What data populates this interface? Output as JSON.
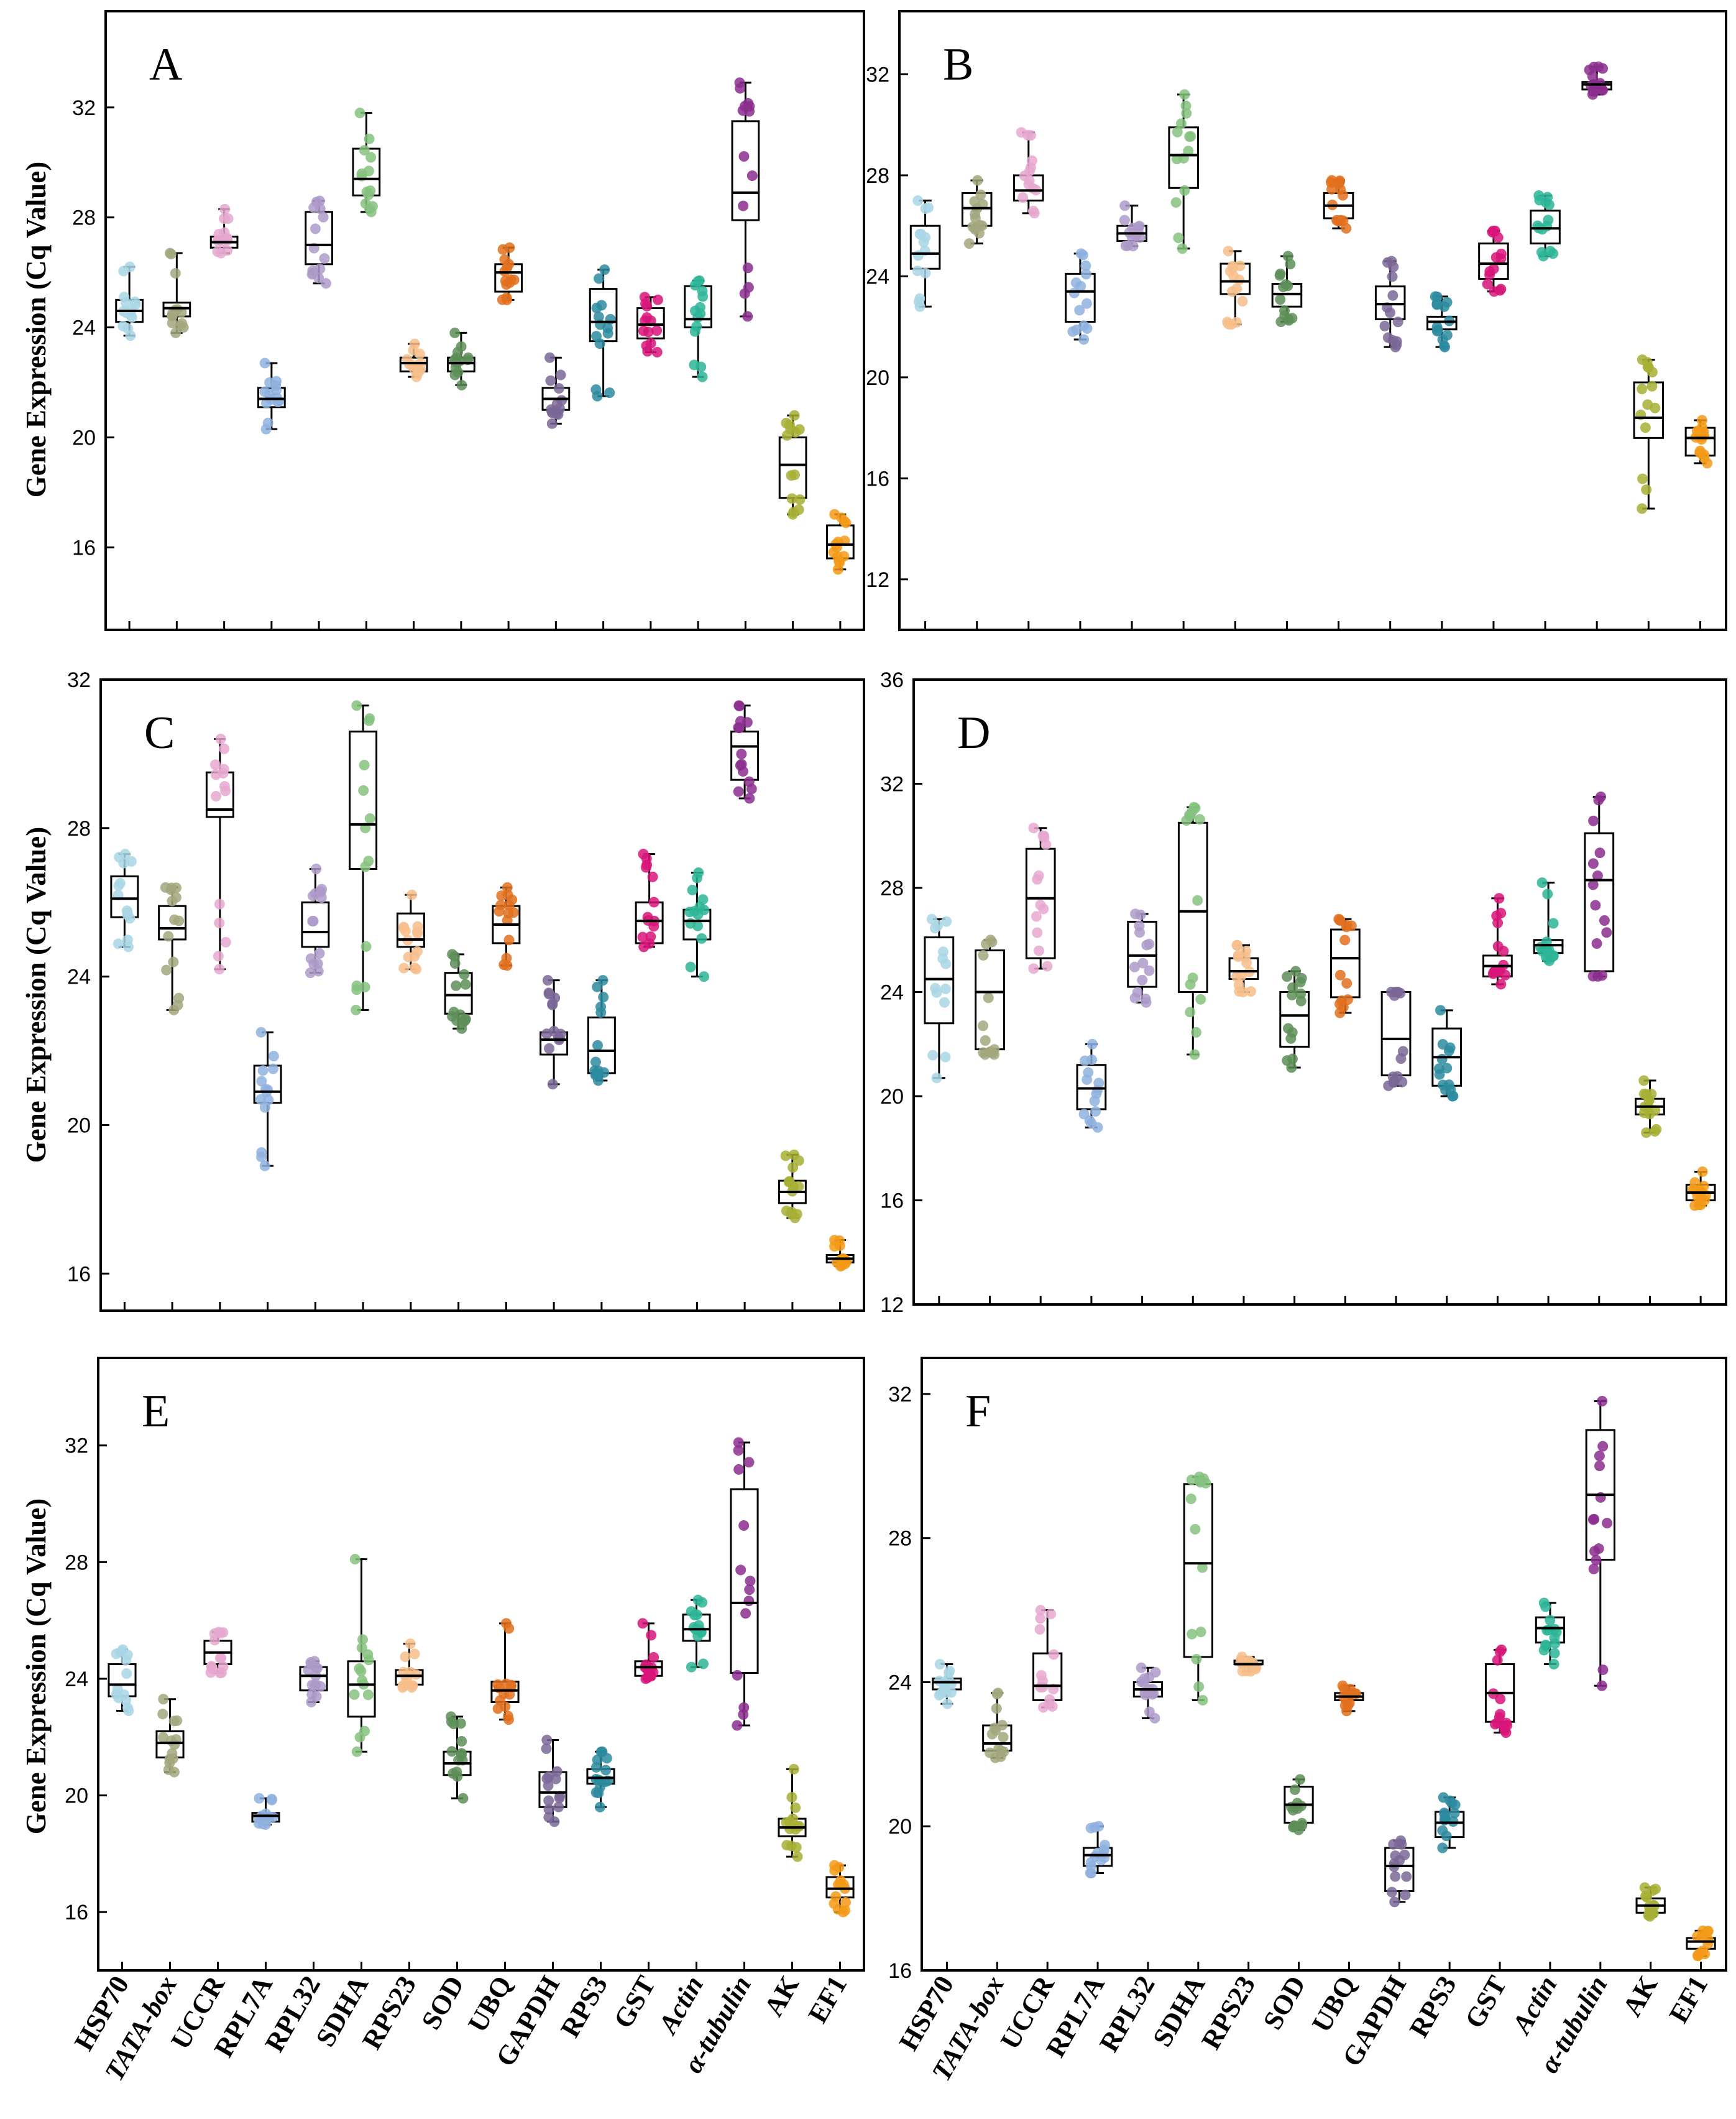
{
  "colors": [
    "#A9D6E5",
    "#A3A77E",
    "#E6A8CF",
    "#8FB1DF",
    "#AE9AC9",
    "#86C27F",
    "#F7BE8C",
    "#5E8E58",
    "#E0701E",
    "#7B6797",
    "#2D8BA0",
    "#D8157A",
    "#2DB596",
    "#8B2E8E",
    "#A8AF35",
    "#F39A17"
  ],
  "chart_data": {
    "type": "box",
    "ylabel": "Gene Expression (Cq Value)",
    "categories": [
      "HSP70",
      "TATA-box",
      "UCCR",
      "RPL7A",
      "RPL32",
      "SDHA",
      "RPS23",
      "SOD",
      "UBQ",
      "GAPDH",
      "RPS3",
      "GST",
      "Actin",
      "α-tubulin",
      "AK",
      "EF1"
    ],
    "italic_categories": [
      "TATA-box",
      "Actin",
      "α-tubulin"
    ],
    "panels": [
      {
        "label": "A",
        "ylim": [
          13.0,
          35.5
        ],
        "yticks": [
          16,
          20,
          24,
          28,
          32
        ],
        "boxes": [
          [
            23.7,
            24.2,
            24.6,
            25.0,
            26.2
          ],
          [
            23.8,
            24.4,
            24.7,
            24.9,
            26.7
          ],
          [
            26.7,
            26.9,
            27.1,
            27.3,
            28.3
          ],
          [
            20.3,
            21.1,
            21.4,
            21.8,
            22.7
          ],
          [
            25.6,
            26.3,
            27.0,
            28.2,
            28.6
          ],
          [
            28.2,
            28.8,
            29.4,
            30.5,
            31.8
          ],
          [
            22.2,
            22.4,
            22.7,
            22.9,
            23.4
          ],
          [
            21.9,
            22.4,
            22.7,
            22.9,
            23.8
          ],
          [
            25.0,
            25.3,
            26.0,
            26.3,
            26.9
          ],
          [
            20.5,
            21.0,
            21.4,
            21.8,
            22.9
          ],
          [
            21.5,
            23.5,
            24.2,
            25.4,
            26.1
          ],
          [
            23.1,
            23.6,
            24.1,
            24.7,
            25.1
          ],
          [
            22.2,
            24.0,
            24.3,
            25.5,
            25.7
          ],
          [
            24.4,
            27.9,
            28.9,
            31.5,
            32.9
          ],
          [
            17.2,
            17.8,
            19.0,
            20.0,
            20.8
          ],
          [
            15.2,
            15.6,
            16.1,
            16.8,
            17.2
          ]
        ]
      },
      {
        "label": "B",
        "ylim": [
          10.0,
          34.5
        ],
        "yticks": [
          12,
          16,
          20,
          24,
          28,
          32
        ],
        "boxes": [
          [
            22.8,
            24.3,
            24.9,
            26.0,
            27.0
          ],
          [
            25.3,
            26.0,
            26.7,
            27.3,
            27.8
          ],
          [
            26.5,
            27.0,
            27.4,
            28.0,
            29.7
          ],
          [
            21.5,
            22.2,
            23.4,
            24.1,
            24.9
          ],
          [
            25.2,
            25.4,
            25.7,
            26.0,
            26.8
          ],
          [
            25.1,
            27.5,
            28.8,
            29.9,
            31.2
          ],
          [
            22.1,
            23.3,
            23.8,
            24.5,
            25.0
          ],
          [
            22.2,
            22.8,
            23.3,
            23.7,
            24.8
          ],
          [
            25.9,
            26.3,
            26.8,
            27.3,
            27.8
          ],
          [
            21.2,
            22.3,
            22.9,
            23.6,
            24.6
          ],
          [
            21.2,
            21.9,
            22.2,
            22.4,
            23.2
          ],
          [
            23.4,
            23.9,
            24.5,
            25.3,
            25.8
          ],
          [
            24.8,
            25.3,
            25.9,
            26.6,
            27.2
          ],
          [
            31.2,
            31.4,
            31.6,
            31.7,
            32.3
          ],
          [
            14.8,
            17.6,
            18.4,
            19.8,
            20.7
          ],
          [
            16.6,
            16.9,
            17.6,
            18.0,
            18.3
          ]
        ]
      },
      {
        "label": "C",
        "ylim": [
          15.0,
          32.0
        ],
        "yticks": [
          16,
          20,
          24,
          28,
          32
        ],
        "boxes": [
          [
            24.8,
            25.6,
            26.1,
            26.7,
            27.3
          ],
          [
            23.1,
            25.0,
            25.3,
            25.9,
            26.4
          ],
          [
            24.2,
            28.3,
            28.5,
            29.5,
            30.4
          ],
          [
            18.9,
            20.6,
            20.9,
            21.6,
            22.5
          ],
          [
            24.1,
            24.8,
            25.2,
            26.0,
            26.9
          ],
          [
            23.1,
            26.9,
            28.1,
            30.6,
            31.3
          ],
          [
            24.2,
            24.8,
            25.0,
            25.7,
            26.2
          ],
          [
            22.6,
            23.0,
            23.5,
            24.1,
            24.6
          ],
          [
            24.3,
            24.9,
            25.4,
            25.9,
            26.4
          ],
          [
            21.1,
            21.9,
            22.3,
            22.5,
            23.9
          ],
          [
            21.2,
            21.4,
            22.0,
            22.9,
            23.9
          ],
          [
            24.8,
            24.9,
            25.5,
            26.0,
            27.3
          ],
          [
            24.0,
            25.0,
            25.5,
            25.8,
            26.8
          ],
          [
            28.8,
            29.3,
            30.2,
            30.6,
            31.3
          ],
          [
            17.5,
            17.9,
            18.2,
            18.5,
            19.2
          ],
          [
            16.2,
            16.3,
            16.4,
            16.5,
            16.9
          ]
        ]
      },
      {
        "label": "D",
        "ylim": [
          12.0,
          36.0
        ],
        "yticks": [
          12,
          16,
          20,
          24,
          28,
          32,
          36
        ],
        "boxes": [
          [
            20.7,
            22.8,
            24.5,
            26.1,
            26.8
          ],
          [
            21.6,
            21.8,
            24.0,
            25.6,
            26.0
          ],
          [
            24.9,
            25.3,
            27.6,
            29.5,
            30.3
          ],
          [
            18.8,
            19.5,
            20.3,
            21.2,
            22.0
          ],
          [
            23.6,
            24.2,
            25.4,
            26.7,
            27.0
          ],
          [
            21.6,
            24.0,
            27.1,
            30.5,
            31.1
          ],
          [
            24.0,
            24.5,
            24.8,
            25.3,
            25.8
          ],
          [
            21.1,
            21.9,
            23.1,
            24.0,
            24.8
          ],
          [
            23.2,
            23.8,
            25.3,
            26.4,
            26.8
          ],
          [
            20.4,
            20.8,
            22.2,
            24.0,
            24.0
          ],
          [
            20.0,
            20.4,
            21.5,
            22.6,
            23.3
          ],
          [
            24.3,
            24.6,
            25.0,
            25.4,
            27.6
          ],
          [
            25.2,
            25.5,
            25.8,
            26.0,
            28.2
          ],
          [
            24.6,
            24.8,
            28.3,
            30.1,
            31.5
          ],
          [
            18.6,
            19.3,
            19.6,
            19.9,
            20.6
          ],
          [
            15.8,
            16.0,
            16.3,
            16.6,
            17.1
          ]
        ]
      },
      {
        "label": "E",
        "ylim": [
          14.0,
          35.0
        ],
        "yticks": [
          16,
          20,
          24,
          28,
          32
        ],
        "boxes": [
          [
            22.9,
            23.4,
            23.8,
            24.5,
            25.0
          ],
          [
            20.8,
            21.3,
            21.8,
            22.2,
            23.3
          ],
          [
            24.2,
            24.5,
            24.9,
            25.3,
            25.6
          ],
          [
            19.0,
            19.1,
            19.3,
            19.4,
            19.9
          ],
          [
            23.2,
            23.6,
            24.1,
            24.4,
            24.6
          ],
          [
            21.5,
            22.7,
            23.8,
            24.6,
            28.1
          ],
          [
            23.7,
            23.8,
            24.1,
            24.3,
            25.2
          ],
          [
            19.9,
            20.7,
            21.1,
            21.5,
            22.7
          ],
          [
            22.6,
            23.2,
            23.6,
            23.9,
            25.9
          ],
          [
            19.1,
            19.6,
            20.1,
            20.8,
            21.9
          ],
          [
            19.6,
            20.4,
            20.6,
            20.9,
            21.5
          ],
          [
            24.0,
            24.1,
            24.4,
            24.6,
            25.9
          ],
          [
            24.4,
            25.3,
            25.7,
            26.2,
            26.7
          ],
          [
            22.4,
            24.2,
            26.6,
            30.5,
            32.1
          ],
          [
            17.9,
            18.6,
            18.9,
            19.2,
            20.9
          ],
          [
            16.0,
            16.5,
            16.8,
            17.2,
            17.6
          ]
        ]
      },
      {
        "label": "F",
        "ylim": [
          16.0,
          33.0
        ],
        "yticks": [
          16,
          20,
          24,
          28,
          32
        ],
        "boxes": [
          [
            23.4,
            23.8,
            24.0,
            24.1,
            24.5
          ],
          [
            21.9,
            22.1,
            22.3,
            22.8,
            23.7
          ],
          [
            23.3,
            23.5,
            23.9,
            24.8,
            26.0
          ],
          [
            18.7,
            18.9,
            19.2,
            19.4,
            20.0
          ],
          [
            23.0,
            23.6,
            23.8,
            24.0,
            24.4
          ],
          [
            23.5,
            24.7,
            27.3,
            29.5,
            29.7
          ],
          [
            24.3,
            24.5,
            24.5,
            24.6,
            24.7
          ],
          [
            19.9,
            20.1,
            20.6,
            21.1,
            21.3
          ],
          [
            23.2,
            23.5,
            23.6,
            23.7,
            23.9
          ],
          [
            17.9,
            18.2,
            18.9,
            19.4,
            19.6
          ],
          [
            19.4,
            19.7,
            20.1,
            20.4,
            20.8
          ],
          [
            22.6,
            22.9,
            23.7,
            24.5,
            24.9
          ],
          [
            24.5,
            25.1,
            25.5,
            25.8,
            26.2
          ],
          [
            23.9,
            27.4,
            29.2,
            31.0,
            31.8
          ],
          [
            17.5,
            17.6,
            17.8,
            18.0,
            18.3
          ],
          [
            16.4,
            16.6,
            16.8,
            16.9,
            17.1
          ]
        ]
      }
    ]
  }
}
